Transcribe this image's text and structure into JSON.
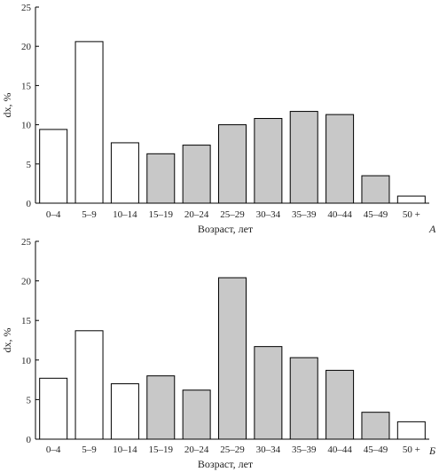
{
  "chart_data": [
    {
      "type": "bar",
      "panel_label": "А",
      "ylabel": "dx, %",
      "xlabel": "Возраст, лет",
      "ylim": [
        0,
        25
      ],
      "yticks": [
        0,
        5,
        10,
        15,
        20,
        25
      ],
      "grid": false,
      "categories": [
        "0–4",
        "5–9",
        "10–14",
        "15–19",
        "20–24",
        "25–29",
        "30–34",
        "35–39",
        "40–44",
        "45–49",
        "50 +"
      ],
      "values": [
        9.4,
        20.6,
        7.7,
        6.3,
        7.4,
        10.0,
        10.8,
        11.7,
        11.3,
        3.5,
        0.9
      ],
      "fill_colors": [
        "#ffffff",
        "#ffffff",
        "#ffffff",
        "#c8c8c8",
        "#c8c8c8",
        "#c8c8c8",
        "#c8c8c8",
        "#c8c8c8",
        "#c8c8c8",
        "#c8c8c8",
        "#ffffff"
      ]
    },
    {
      "type": "bar",
      "panel_label": "Б",
      "ylabel": "dx, %",
      "xlabel": "Возраст, лет",
      "ylim": [
        0,
        25
      ],
      "yticks": [
        0,
        5,
        10,
        15,
        20,
        25
      ],
      "grid": false,
      "categories": [
        "0–4",
        "5–9",
        "10–14",
        "15–19",
        "20–24",
        "25–29",
        "30–34",
        "35–39",
        "40–44",
        "45–49",
        "50 +"
      ],
      "values": [
        7.7,
        13.7,
        7.0,
        8.0,
        6.2,
        20.4,
        11.7,
        10.3,
        8.7,
        3.4,
        2.2
      ],
      "fill_colors": [
        "#ffffff",
        "#ffffff",
        "#ffffff",
        "#c8c8c8",
        "#c8c8c8",
        "#c8c8c8",
        "#c8c8c8",
        "#c8c8c8",
        "#c8c8c8",
        "#c8c8c8",
        "#ffffff"
      ]
    }
  ]
}
